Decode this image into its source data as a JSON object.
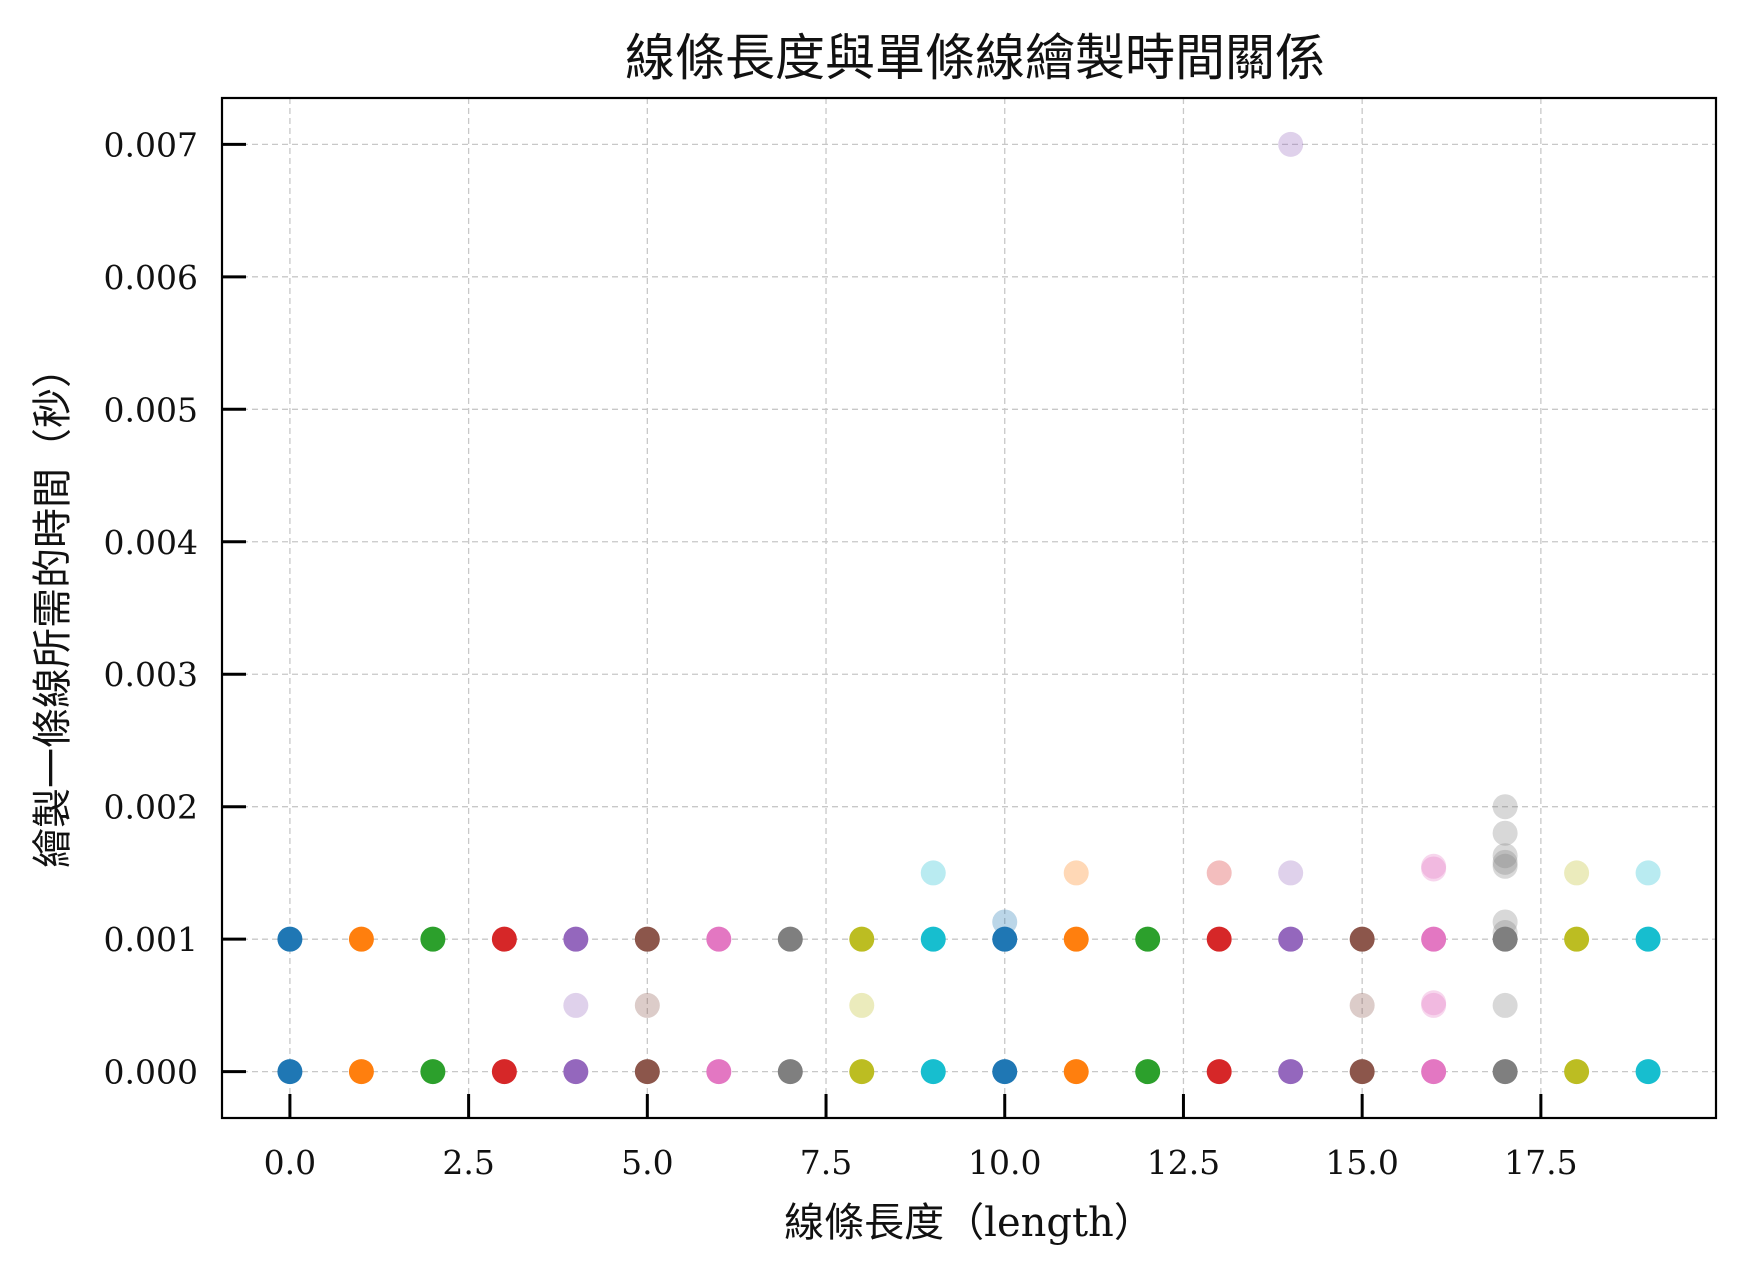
{
  "chart_data": {
    "type": "scatter",
    "title": "線條長度與單條線繪製時間關係",
    "xlabel": "線條長度（length）",
    "ylabel": "繪製一條線所需的時間（秒）",
    "xlim": [
      -0.95,
      19.95
    ],
    "ylim": [
      -0.00035,
      0.00735
    ],
    "xticks": [
      0.0,
      2.5,
      5.0,
      7.5,
      10.0,
      12.5,
      15.0,
      17.5
    ],
    "xtick_labels": [
      "0.0",
      "2.5",
      "5.0",
      "7.5",
      "10.0",
      "12.5",
      "15.0",
      "17.5"
    ],
    "yticks": [
      0.0,
      0.001,
      0.002,
      0.003,
      0.004,
      0.005,
      0.006,
      0.007
    ],
    "ytick_labels": [
      "0.000",
      "0.001",
      "0.002",
      "0.003",
      "0.004",
      "0.005",
      "0.006",
      "0.007"
    ],
    "grid": true,
    "marker_alpha_faint": 0.3,
    "palette": [
      "#1f77b4",
      "#ff7f0e",
      "#2ca02c",
      "#d62728",
      "#9467bd",
      "#8c564b",
      "#e377c2",
      "#7f7f7f",
      "#bcbd22",
      "#17becf"
    ],
    "points": [
      {
        "x": 0,
        "y": 0.0,
        "color": "#1f77b4",
        "alpha": 1
      },
      {
        "x": 0,
        "y": 0.001,
        "color": "#1f77b4",
        "alpha": 1
      },
      {
        "x": 1,
        "y": 0.0,
        "color": "#ff7f0e",
        "alpha": 1
      },
      {
        "x": 1,
        "y": 0.001,
        "color": "#ff7f0e",
        "alpha": 1
      },
      {
        "x": 2,
        "y": 0.0,
        "color": "#2ca02c",
        "alpha": 1
      },
      {
        "x": 2,
        "y": 0.001,
        "color": "#2ca02c",
        "alpha": 1
      },
      {
        "x": 3,
        "y": 0.0,
        "color": "#d62728",
        "alpha": 1
      },
      {
        "x": 3,
        "y": 0.001,
        "color": "#d62728",
        "alpha": 1
      },
      {
        "x": 4,
        "y": 0.0,
        "color": "#9467bd",
        "alpha": 1
      },
      {
        "x": 4,
        "y": 0.0005,
        "color": "#9467bd",
        "alpha": 0.3
      },
      {
        "x": 4,
        "y": 0.001,
        "color": "#9467bd",
        "alpha": 1
      },
      {
        "x": 5,
        "y": 0.0,
        "color": "#8c564b",
        "alpha": 1
      },
      {
        "x": 5,
        "y": 0.0005,
        "color": "#8c564b",
        "alpha": 0.3
      },
      {
        "x": 5,
        "y": 0.001,
        "color": "#8c564b",
        "alpha": 1
      },
      {
        "x": 6,
        "y": 0.0,
        "color": "#e377c2",
        "alpha": 1
      },
      {
        "x": 6,
        "y": 0.001,
        "color": "#e377c2",
        "alpha": 1
      },
      {
        "x": 7,
        "y": 0.0,
        "color": "#7f7f7f",
        "alpha": 1
      },
      {
        "x": 7,
        "y": 0.001,
        "color": "#7f7f7f",
        "alpha": 1
      },
      {
        "x": 8,
        "y": 0.0,
        "color": "#bcbd22",
        "alpha": 1
      },
      {
        "x": 8,
        "y": 0.0005,
        "color": "#bcbd22",
        "alpha": 0.3
      },
      {
        "x": 8,
        "y": 0.001,
        "color": "#bcbd22",
        "alpha": 1
      },
      {
        "x": 9,
        "y": 0.0,
        "color": "#17becf",
        "alpha": 1
      },
      {
        "x": 9,
        "y": 0.001,
        "color": "#17becf",
        "alpha": 1
      },
      {
        "x": 9,
        "y": 0.0015,
        "color": "#17becf",
        "alpha": 0.3
      },
      {
        "x": 10,
        "y": 0.0,
        "color": "#1f77b4",
        "alpha": 1
      },
      {
        "x": 10,
        "y": 0.001,
        "color": "#1f77b4",
        "alpha": 1
      },
      {
        "x": 10,
        "y": 0.00113,
        "color": "#1f77b4",
        "alpha": 0.3
      },
      {
        "x": 11,
        "y": 0.0,
        "color": "#ff7f0e",
        "alpha": 1
      },
      {
        "x": 11,
        "y": 0.001,
        "color": "#ff7f0e",
        "alpha": 1
      },
      {
        "x": 11,
        "y": 0.0015,
        "color": "#ff7f0e",
        "alpha": 0.3
      },
      {
        "x": 12,
        "y": 0.0,
        "color": "#2ca02c",
        "alpha": 1
      },
      {
        "x": 12,
        "y": 0.001,
        "color": "#2ca02c",
        "alpha": 1
      },
      {
        "x": 13,
        "y": 0.0,
        "color": "#d62728",
        "alpha": 1
      },
      {
        "x": 13,
        "y": 0.001,
        "color": "#d62728",
        "alpha": 1
      },
      {
        "x": 13,
        "y": 0.0015,
        "color": "#d62728",
        "alpha": 0.3
      },
      {
        "x": 14,
        "y": 0.0,
        "color": "#9467bd",
        "alpha": 1
      },
      {
        "x": 14,
        "y": 0.001,
        "color": "#9467bd",
        "alpha": 1
      },
      {
        "x": 14,
        "y": 0.0015,
        "color": "#9467bd",
        "alpha": 0.3
      },
      {
        "x": 14,
        "y": 0.007,
        "color": "#9467bd",
        "alpha": 0.3
      },
      {
        "x": 15,
        "y": 0.0,
        "color": "#8c564b",
        "alpha": 1
      },
      {
        "x": 15,
        "y": 0.0005,
        "color": "#8c564b",
        "alpha": 0.3
      },
      {
        "x": 15,
        "y": 0.001,
        "color": "#8c564b",
        "alpha": 1
      },
      {
        "x": 16,
        "y": 0.0,
        "color": "#e377c2",
        "alpha": 1
      },
      {
        "x": 16,
        "y": 0.0005,
        "color": "#e377c2",
        "alpha": 0.3
      },
      {
        "x": 16,
        "y": 0.00052,
        "color": "#e377c2",
        "alpha": 0.3
      },
      {
        "x": 16,
        "y": 0.001,
        "color": "#e377c2",
        "alpha": 1
      },
      {
        "x": 16,
        "y": 0.00153,
        "color": "#e377c2",
        "alpha": 0.3
      },
      {
        "x": 16,
        "y": 0.00155,
        "color": "#e377c2",
        "alpha": 0.3
      },
      {
        "x": 17,
        "y": 0.0,
        "color": "#7f7f7f",
        "alpha": 1
      },
      {
        "x": 17,
        "y": 0.0005,
        "color": "#7f7f7f",
        "alpha": 0.3
      },
      {
        "x": 17,
        "y": 0.001,
        "color": "#7f7f7f",
        "alpha": 1
      },
      {
        "x": 17,
        "y": 0.00105,
        "color": "#7f7f7f",
        "alpha": 0.3
      },
      {
        "x": 17,
        "y": 0.00113,
        "color": "#7f7f7f",
        "alpha": 0.3
      },
      {
        "x": 17,
        "y": 0.00155,
        "color": "#7f7f7f",
        "alpha": 0.3
      },
      {
        "x": 17,
        "y": 0.00158,
        "color": "#7f7f7f",
        "alpha": 0.3
      },
      {
        "x": 17,
        "y": 0.00163,
        "color": "#7f7f7f",
        "alpha": 0.3
      },
      {
        "x": 17,
        "y": 0.0018,
        "color": "#7f7f7f",
        "alpha": 0.3
      },
      {
        "x": 17,
        "y": 0.002,
        "color": "#7f7f7f",
        "alpha": 0.3
      },
      {
        "x": 18,
        "y": 0.0,
        "color": "#bcbd22",
        "alpha": 1
      },
      {
        "x": 18,
        "y": 0.001,
        "color": "#bcbd22",
        "alpha": 1
      },
      {
        "x": 18,
        "y": 0.0015,
        "color": "#bcbd22",
        "alpha": 0.3
      },
      {
        "x": 19,
        "y": 0.0,
        "color": "#17becf",
        "alpha": 1
      },
      {
        "x": 19,
        "y": 0.001,
        "color": "#17becf",
        "alpha": 1
      },
      {
        "x": 19,
        "y": 0.0015,
        "color": "#17becf",
        "alpha": 0.3
      }
    ]
  }
}
